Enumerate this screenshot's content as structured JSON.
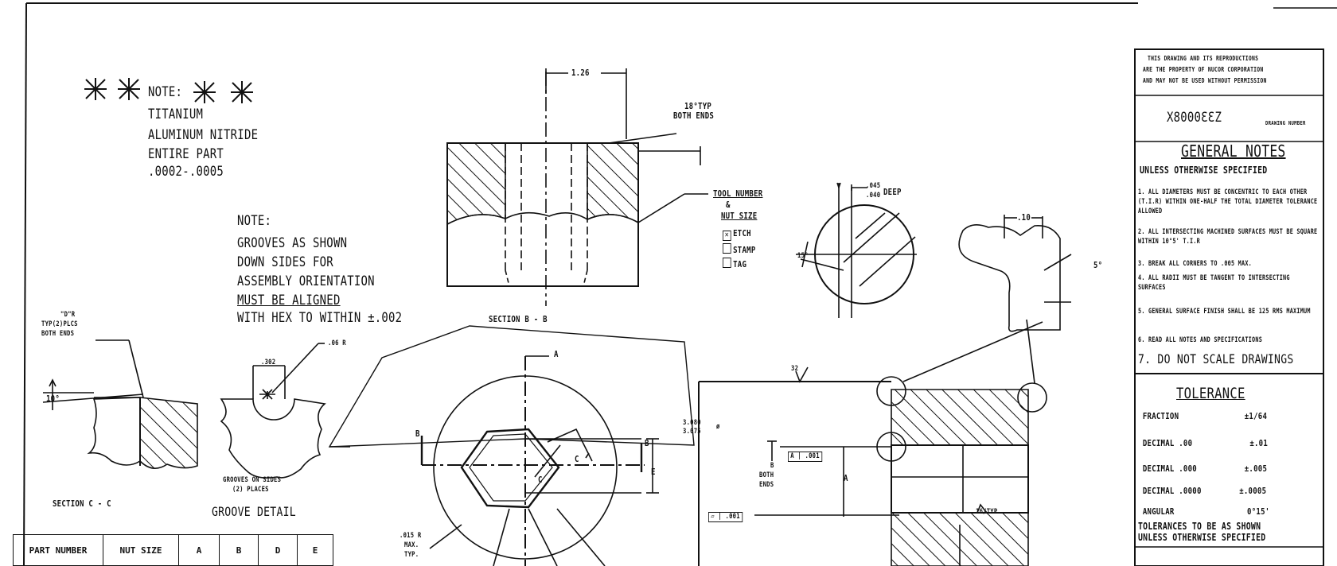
{
  "note_coating": {
    "title": "NOTE:",
    "lines": [
      "TITANIUM",
      "ALUMINUM NITRIDE",
      "ENTIRE PART",
      ".0002-.0005"
    ]
  },
  "note_grooves": {
    "title": "NOTE:",
    "lines": [
      "GROOVES AS SHOWN",
      "DOWN SIDES FOR",
      "ASSEMBLY ORIENTATION",
      "MUST BE ALIGNED",
      "WITH HEX TO WITHIN ±.002"
    ]
  },
  "section_bb": {
    "dim_top": "1.26",
    "dim_typ": "18°TYP",
    "dim_typ2": "BOTH ENDS",
    "label": "SECTION B - B"
  },
  "tool_number": {
    "line1": "TOOL NUMBER",
    "line2": "&",
    "line3": "NUT SIZE",
    "options": [
      {
        "label": "ETCH",
        "checked": true
      },
      {
        "label": "STAMP",
        "checked": false
      },
      {
        "label": "TAG",
        "checked": false
      }
    ]
  },
  "detail_circle": {
    "depth_num": ".045",
    "depth_den": ".040",
    "depth_label": "DEEP",
    "angle": "15°"
  },
  "lug_detail": {
    "dim": ".10",
    "angle": "5°"
  },
  "section_cc": {
    "radius_label": "\"D\"R",
    "radius_sub1": "TYP(2)PLCS",
    "radius_sub2": "BOTH ENDS",
    "angle": "10°",
    "label": "SECTION C - C"
  },
  "groove_detail": {
    "dim_width": ".302",
    "dim_radius": ".06 R",
    "note1": "GROOVES ON SIDES",
    "note2": "(2) PLACES",
    "label": "GROOVE DETAIL"
  },
  "main_view": {
    "lbl_a": "A",
    "lbl_b_left": "B",
    "lbl_b_right": "B",
    "lbl_e": "E",
    "lbl_c1": "C",
    "lbl_c2": "C",
    "radius_note1": ".015 R",
    "radius_note2": "MAX.",
    "radius_note3": "TYP."
  },
  "side_view": {
    "dia_top": "3.080",
    "dia_bot": "3.075",
    "dia_sym": "ø",
    "finish": "32",
    "tol_frame": ".001",
    "tol_frame_ref": "A",
    "both1": "B",
    "both2": "BOTH",
    "both3": "ENDS",
    "lbl_a": "A",
    "flat_frame": ".001",
    "typ": "16/TYP"
  },
  "title_block": {
    "property_notice": [
      "THIS DRAWING AND ITS REPRODUCTIONS",
      "ARE THE PROPERTY OF NUCOR CORPORATION",
      "AND MAY NOT BE USED WITHOUT PERMISSION"
    ],
    "drawing_no": "X8000ƐƐΖ",
    "drawing_no_label": "DRAWING NUMBER",
    "general_notes_title": "GENERAL NOTES",
    "unless": "UNLESS OTHERWISE SPECIFIED",
    "notes": [
      "1. ALL DIAMETERS MUST BE CONCENTRIC TO EACH OTHER (T.I.R) WITHIN ONE-HALF THE TOTAL DIAMETER TOLERANCE ALLOWED",
      "2. ALL INTERSECTING MACHINED SURFACES MUST BE SQUARE WITHIN 10°5' T.I.R",
      "3. BREAK ALL CORNERS TO .005 MAX.",
      "4. ALL RADII MUST BE TANGENT TO INTERSECTING SURFACES",
      "5. GENERAL SURFACE FINISH SHALL BE 125 RMS MAXIMUM",
      "6. READ ALL NOTES AND SPECIFICATIONS",
      "7. DO NOT SCALE DRAWINGS"
    ],
    "tolerance_title": "TOLERANCE",
    "tolerances": [
      {
        "label": "FRACTION",
        "value": "±1/64"
      },
      {
        "label": "DECIMAL .00",
        "value": "±.01"
      },
      {
        "label": "DECIMAL .000",
        "value": "±.005"
      },
      {
        "label": "DECIMAL .0000",
        "value": "±.0005"
      },
      {
        "label": "ANGULAR",
        "value": "0°15'"
      }
    ],
    "tol_footer1": "TOLERANCES TO BE AS SHOWN",
    "tol_footer2": "UNLESS OTHERWISE SPECIFIED"
  },
  "part_table": {
    "headers": [
      "PART NUMBER",
      "NUT SIZE",
      "A",
      "B",
      "D",
      "E"
    ]
  }
}
